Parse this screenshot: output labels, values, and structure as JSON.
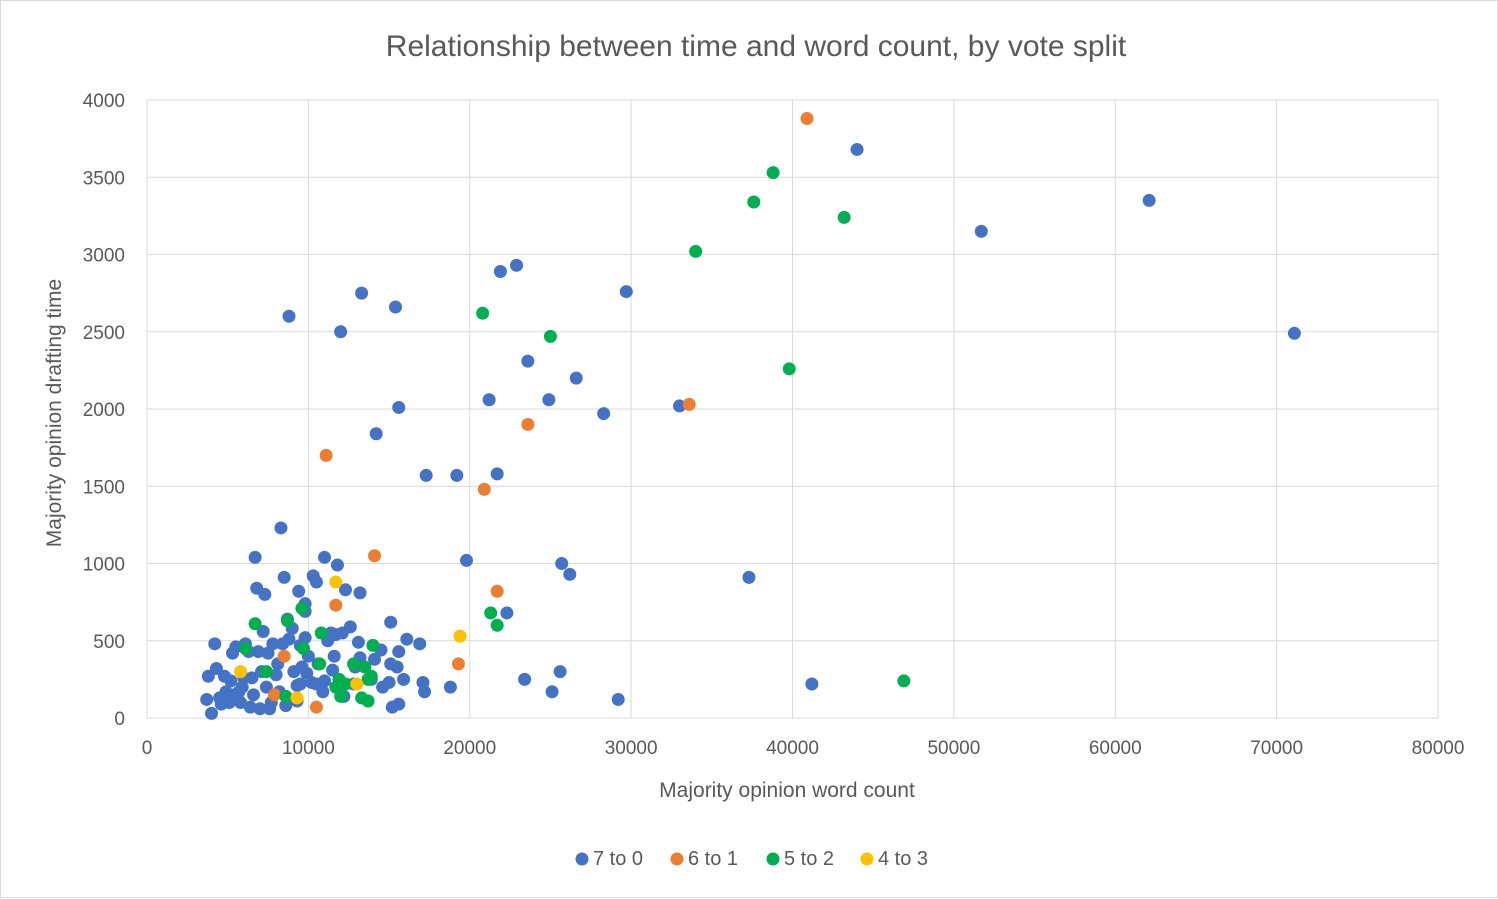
{
  "chart_data": {
    "type": "scatter",
    "title": "Relationship between time and word count, by vote split",
    "xlabel": "Majority opinion word count",
    "ylabel": "Majority opinion drafting time",
    "xlim": [
      0,
      80000
    ],
    "ylim": [
      0,
      4000
    ],
    "x_ticks": [
      "0",
      "10000",
      "20000",
      "30000",
      "40000",
      "50000",
      "60000",
      "70000",
      "80000"
    ],
    "y_ticks": [
      "0",
      "500",
      "1000",
      "1500",
      "2000",
      "2500",
      "3000",
      "3500",
      "4000"
    ],
    "grid": true,
    "legend_position": "bottom",
    "series": [
      {
        "name": "7 to 0",
        "color": "#4472C4",
        "points": [
          [
            44000,
            3680
          ],
          [
            62100,
            3350
          ],
          [
            51700,
            3150
          ],
          [
            71100,
            2490
          ],
          [
            41200,
            220
          ],
          [
            37300,
            910
          ],
          [
            33000,
            2020
          ],
          [
            29700,
            2760
          ],
          [
            28300,
            1970
          ],
          [
            26600,
            2200
          ],
          [
            26200,
            930
          ],
          [
            25700,
            1000
          ],
          [
            25600,
            300
          ],
          [
            25100,
            170
          ],
          [
            24900,
            2060
          ],
          [
            23600,
            2310
          ],
          [
            23400,
            250
          ],
          [
            22900,
            2930
          ],
          [
            22300,
            680
          ],
          [
            21900,
            2890
          ],
          [
            21700,
            1580
          ],
          [
            21200,
            2060
          ],
          [
            19800,
            1020
          ],
          [
            19200,
            1570
          ],
          [
            18800,
            200
          ],
          [
            17300,
            1570
          ],
          [
            17200,
            170
          ],
          [
            17100,
            230
          ],
          [
            16900,
            480
          ],
          [
            16100,
            510
          ],
          [
            15900,
            250
          ],
          [
            15600,
            2010
          ],
          [
            15600,
            430
          ],
          [
            15500,
            330
          ],
          [
            15400,
            2660
          ],
          [
            15600,
            90
          ],
          [
            15200,
            70
          ],
          [
            15100,
            620
          ],
          [
            15100,
            350
          ],
          [
            15000,
            230
          ],
          [
            14600,
            200
          ],
          [
            14500,
            440
          ],
          [
            14200,
            1840
          ],
          [
            14100,
            380
          ],
          [
            13900,
            250
          ],
          [
            13300,
            2750
          ],
          [
            13200,
            810
          ],
          [
            13200,
            390
          ],
          [
            13100,
            490
          ],
          [
            12900,
            330
          ],
          [
            12800,
            220
          ],
          [
            12600,
            590
          ],
          [
            12300,
            830
          ],
          [
            12200,
            140
          ],
          [
            12000,
            2500
          ],
          [
            12100,
            550
          ],
          [
            11800,
            990
          ],
          [
            11700,
            540
          ],
          [
            11600,
            400
          ],
          [
            11500,
            310
          ],
          [
            11400,
            550
          ],
          [
            11200,
            500
          ],
          [
            11000,
            1040
          ],
          [
            11000,
            240
          ],
          [
            10900,
            170
          ],
          [
            10600,
            350
          ],
          [
            10500,
            220
          ],
          [
            10500,
            880
          ],
          [
            10300,
            920
          ],
          [
            10200,
            230
          ],
          [
            10000,
            400
          ],
          [
            9900,
            290
          ],
          [
            9800,
            690
          ],
          [
            9800,
            740
          ],
          [
            9800,
            520
          ],
          [
            9600,
            330
          ],
          [
            9500,
            220
          ],
          [
            9500,
            470
          ],
          [
            9400,
            820
          ],
          [
            9300,
            110
          ],
          [
            9300,
            210
          ],
          [
            9100,
            300
          ],
          [
            9000,
            580
          ],
          [
            8800,
            2600
          ],
          [
            8800,
            510
          ],
          [
            8700,
            640
          ],
          [
            8600,
            80
          ],
          [
            8500,
            910
          ],
          [
            8400,
            480
          ],
          [
            8300,
            1230
          ],
          [
            8200,
            170
          ],
          [
            8100,
            350
          ],
          [
            8000,
            280
          ],
          [
            7800,
            480
          ],
          [
            7700,
            100
          ],
          [
            7600,
            60
          ],
          [
            7500,
            420
          ],
          [
            7400,
            200
          ],
          [
            7300,
            800
          ],
          [
            7200,
            560
          ],
          [
            7100,
            300
          ],
          [
            7000,
            60
          ],
          [
            6900,
            430
          ],
          [
            6800,
            840
          ],
          [
            6700,
            1040
          ],
          [
            6600,
            150
          ],
          [
            6500,
            260
          ],
          [
            6400,
            70
          ],
          [
            6300,
            430
          ],
          [
            6100,
            480
          ],
          [
            6000,
            260
          ],
          [
            5900,
            200
          ],
          [
            5800,
            100
          ],
          [
            5700,
            170
          ],
          [
            5500,
            460
          ],
          [
            5400,
            150
          ],
          [
            5300,
            420
          ],
          [
            5200,
            240
          ],
          [
            5100,
            100
          ],
          [
            4900,
            170
          ],
          [
            4800,
            270
          ],
          [
            4600,
            90
          ],
          [
            4500,
            130
          ],
          [
            4300,
            320
          ],
          [
            4200,
            480
          ],
          [
            4000,
            30
          ],
          [
            3800,
            270
          ],
          [
            3700,
            120
          ],
          [
            29200,
            120
          ]
        ]
      },
      {
        "name": "6 to 1",
        "color": "#ED7D31",
        "points": [
          [
            40900,
            3880
          ],
          [
            33600,
            2030
          ],
          [
            23600,
            1900
          ],
          [
            20900,
            1480
          ],
          [
            11100,
            1700
          ],
          [
            14100,
            1050
          ],
          [
            21700,
            820
          ],
          [
            11700,
            730
          ],
          [
            19300,
            350
          ],
          [
            8500,
            400
          ],
          [
            7900,
            150
          ],
          [
            10500,
            70
          ]
        ]
      },
      {
        "name": "5 to 2",
        "color": "#00B050",
        "points": [
          [
            38800,
            3530
          ],
          [
            37600,
            3340
          ],
          [
            43200,
            3240
          ],
          [
            34000,
            3020
          ],
          [
            20800,
            2620
          ],
          [
            25000,
            2470
          ],
          [
            39800,
            2260
          ],
          [
            21300,
            680
          ],
          [
            21700,
            600
          ],
          [
            46900,
            240
          ],
          [
            10800,
            550
          ],
          [
            14000,
            470
          ],
          [
            9600,
            710
          ],
          [
            8700,
            630
          ],
          [
            6700,
            610
          ],
          [
            6100,
            450
          ],
          [
            9700,
            450
          ],
          [
            7400,
            300
          ],
          [
            10700,
            350
          ],
          [
            12800,
            350
          ],
          [
            13500,
            330
          ],
          [
            13900,
            270
          ],
          [
            11900,
            250
          ],
          [
            11700,
            200
          ],
          [
            12000,
            140
          ],
          [
            13300,
            130
          ],
          [
            13700,
            110
          ],
          [
            8600,
            140
          ],
          [
            13700,
            250
          ],
          [
            12300,
            220
          ]
        ]
      },
      {
        "name": "4 to 3",
        "color": "#FFC000",
        "points": [
          [
            11700,
            880
          ],
          [
            19400,
            530
          ],
          [
            5800,
            300
          ],
          [
            13000,
            220
          ],
          [
            9300,
            130
          ]
        ]
      }
    ]
  }
}
